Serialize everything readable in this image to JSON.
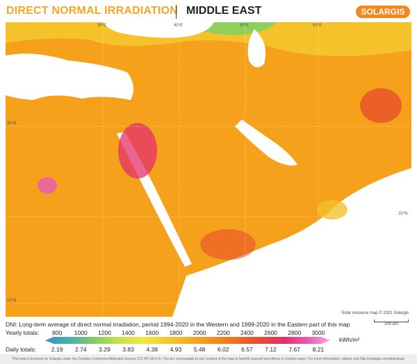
{
  "header": {
    "title": "DIRECT NORMAL IRRADIATION",
    "region": "MIDDLE EAST",
    "logo": "SOLARGIS"
  },
  "map": {
    "lon_labels": [
      "30°E",
      "40°E",
      "50°E",
      "60°E"
    ],
    "lat_labels": [
      "30°N",
      "20°N",
      "10°N"
    ],
    "credit": "Solar resource map © 2021 Solargis",
    "scale_label": "200 km",
    "water_color": "#ffffff",
    "land_accent_colors": [
      "#f6a11c",
      "#f28a1e",
      "#f5c22b",
      "#e4306a"
    ]
  },
  "description": "DNI: Long-term average of direct normal irradiation, period 1994-2020 in the Western and 1999-2020 in the Eastern part of this map",
  "legend": {
    "yearly_label": "Yearly totals:",
    "yearly_values": [
      "800",
      "1000",
      "1200",
      "1400",
      "1600",
      "1800",
      "2000",
      "2200",
      "2400",
      "2600",
      "2800",
      "3000"
    ],
    "daily_label": "Daily totals:",
    "daily_values": [
      "2.19",
      "2.74",
      "3.29",
      "3.83",
      "4.38",
      "4.93",
      "5.48",
      "6.02",
      "6.57",
      "7.12",
      "7.67",
      "8.21"
    ],
    "unit": "kWh/m²"
  },
  "footer": "This map is licensed by Solargis under the Creative Commons Attribution license (CC BY-SA 4.0). You are encouraged to use content of the map to benefit yourself and others in creative ways. For more information, please visit http://solargis.com/download."
}
